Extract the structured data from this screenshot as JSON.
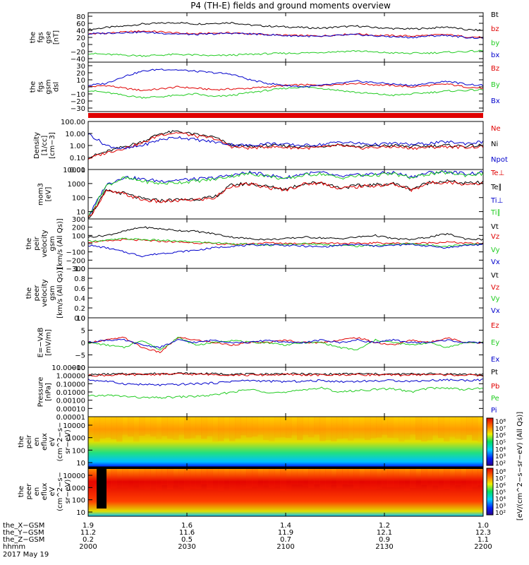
{
  "title": "P4 (TH-E) fields and ground moments overview",
  "colors": {
    "black": "#000000",
    "red": "#e00000",
    "green": "#22cc22",
    "blue": "#0000cc"
  },
  "chart_data": [
    {
      "type": "line",
      "ylabel": [
        "the",
        "fgs",
        "gse",
        "[nT]"
      ],
      "ylim": [
        -50,
        90
      ],
      "ticks": [
        "80",
        "60",
        "40",
        "20",
        "0",
        "−20",
        "−40"
      ],
      "tick_values": [
        80,
        60,
        40,
        20,
        0,
        -20,
        -40
      ],
      "legend": [
        {
          "name": "Bt",
          "color": "#000000"
        },
        {
          "name": "bz",
          "color": "#e00000"
        },
        {
          "name": "by",
          "color": "#22cc22"
        },
        {
          "name": "bx",
          "color": "#0000cc"
        }
      ],
      "series": [
        {
          "name": "Bt",
          "color": "#000000",
          "values": [
            42,
            48,
            52,
            58,
            60,
            62,
            58,
            60,
            62,
            55,
            52,
            50,
            48,
            46,
            50,
            52,
            48,
            45,
            44,
            46,
            50,
            42,
            40
          ]
        },
        {
          "name": "bz",
          "color": "#e00000",
          "values": [
            30,
            32,
            35,
            38,
            36,
            32,
            30,
            32,
            33,
            30,
            28,
            26,
            25,
            24,
            28,
            30,
            26,
            25,
            24,
            26,
            28,
            22,
            20
          ]
        },
        {
          "name": "by",
          "color": "#22cc22",
          "values": [
            -25,
            -28,
            -30,
            -32,
            -30,
            -28,
            -30,
            -32,
            -30,
            -28,
            -26,
            -25,
            -24,
            -22,
            -20,
            -18,
            -22,
            -24,
            -25,
            -24,
            -22,
            -20,
            -18
          ]
        },
        {
          "name": "bx",
          "color": "#0000cc",
          "values": [
            30,
            32,
            34,
            35,
            32,
            30,
            28,
            30,
            32,
            30,
            28,
            25,
            24,
            22,
            26,
            28,
            24,
            22,
            20,
            24,
            26,
            20,
            18
          ]
        }
      ]
    },
    {
      "type": "line",
      "ylabel": [
        "the",
        "fgs",
        "gsm",
        "dsl"
      ],
      "ylim": [
        -35,
        35
      ],
      "ticks": [
        "30",
        "20",
        "10",
        "0",
        "−10",
        "−20",
        "−30"
      ],
      "tick_values": [
        30,
        20,
        10,
        0,
        -10,
        -20,
        -30
      ],
      "legend": [
        {
          "name": "Bz",
          "color": "#e00000"
        },
        {
          "name": "By",
          "color": "#22cc22"
        },
        {
          "name": "Bx",
          "color": "#0000cc"
        }
      ],
      "series": [
        {
          "name": "Bz",
          "color": "#e00000",
          "values": [
            0,
            2,
            -2,
            -5,
            -3,
            0,
            -2,
            -4,
            -3,
            -2,
            0,
            2,
            3,
            2,
            4,
            5,
            3,
            2,
            0,
            2,
            4,
            0,
            -2
          ]
        },
        {
          "name": "By",
          "color": "#22cc22",
          "values": [
            -5,
            -8,
            -12,
            -15,
            -14,
            -12,
            -10,
            -14,
            -12,
            -8,
            -5,
            -2,
            0,
            -2,
            -5,
            -8,
            -10,
            -12,
            -10,
            -8,
            -6,
            -5,
            -4
          ]
        },
        {
          "name": "Bx",
          "color": "#0000cc",
          "values": [
            2,
            5,
            15,
            22,
            25,
            24,
            22,
            20,
            18,
            10,
            5,
            2,
            0,
            2,
            5,
            8,
            6,
            4,
            2,
            5,
            8,
            4,
            2
          ]
        }
      ]
    },
    {
      "type": "line",
      "ylabel": [
        "Density",
        "[1/cc]",
        "[cm−3]"
      ],
      "log": true,
      "ylim": [
        0.01,
        100
      ],
      "ticks": [
        "100.00",
        "10.00",
        "1.00",
        "0.10",
        "0.01"
      ],
      "tick_values": [
        100,
        10,
        1,
        0.1,
        0.01
      ],
      "legend": [
        {
          "name": "Ne",
          "color": "#e00000"
        },
        {
          "name": "Ni",
          "color": "#000000"
        },
        {
          "name": "Npot",
          "color": "#0000cc"
        }
      ],
      "series": [
        {
          "name": "Ni",
          "color": "#000000",
          "values": [
            0.1,
            0.3,
            0.8,
            2,
            10,
            15,
            8,
            5,
            1,
            0.8,
            1,
            0.9,
            0.8,
            0.9,
            1.2,
            0.8,
            0.9,
            1,
            0.8,
            0.9,
            1,
            0.9,
            1
          ]
        },
        {
          "name": "Ne",
          "color": "#e00000",
          "values": [
            0.08,
            0.25,
            0.6,
            1.5,
            8,
            12,
            6,
            4,
            0.8,
            0.6,
            0.8,
            0.7,
            0.6,
            0.7,
            1,
            0.6,
            0.7,
            0.8,
            0.6,
            0.7,
            0.8,
            0.7,
            0.8
          ]
        },
        {
          "name": "Npot",
          "color": "#0000cc",
          "values": [
            10,
            1,
            0.5,
            1,
            3,
            5,
            3,
            2,
            1.2,
            1,
            1.5,
            1.2,
            1,
            1.2,
            2,
            1.5,
            1.2,
            1.5,
            1.2,
            1.5,
            2,
            1.5,
            2
          ]
        }
      ]
    },
    {
      "type": "line",
      "ylabel": [
        "mom3",
        "[eV]"
      ],
      "log": true,
      "ylim": [
        3,
        10000
      ],
      "ticks": [
        "10000",
        "1000",
        "100",
        "10"
      ],
      "tick_values": [
        10000,
        1000,
        100,
        10
      ],
      "legend": [
        {
          "name": "Te⊥",
          "color": "#e00000"
        },
        {
          "name": "Te∥",
          "color": "#000000"
        },
        {
          "name": "Ti⊥",
          "color": "#0000cc"
        },
        {
          "name": "Ti∥",
          "color": "#22cc22"
        }
      ],
      "series": [
        {
          "name": "Ti⊥",
          "color": "#0000cc",
          "values": [
            4,
            800,
            3000,
            2000,
            1500,
            1800,
            2000,
            2500,
            4000,
            6000,
            4000,
            2500,
            5000,
            6000,
            3000,
            4000,
            5000,
            6000,
            3000,
            6000,
            7000,
            5000,
            6000
          ]
        },
        {
          "name": "Ti∥",
          "color": "#22cc22",
          "values": [
            4,
            700,
            2500,
            1500,
            1000,
            1200,
            1500,
            2000,
            3500,
            5000,
            3500,
            2000,
            4000,
            5000,
            2500,
            3500,
            4000,
            5000,
            2500,
            5000,
            6000,
            4000,
            5000
          ]
        },
        {
          "name": "Te∥",
          "color": "#000000",
          "values": [
            3,
            300,
            200,
            80,
            60,
            70,
            80,
            100,
            800,
            1000,
            600,
            400,
            1000,
            1200,
            500,
            700,
            800,
            1000,
            400,
            1200,
            1500,
            1000,
            1200
          ]
        },
        {
          "name": "Te⊥",
          "color": "#e00000",
          "values": [
            3,
            280,
            180,
            70,
            50,
            60,
            70,
            90,
            700,
            900,
            500,
            350,
            900,
            1100,
            450,
            600,
            700,
            900,
            350,
            1100,
            1300,
            900,
            1100
          ]
        }
      ]
    },
    {
      "type": "line",
      "ylabel": [
        "the",
        "peir",
        "velocity",
        "gsm",
        "[km/s (All Qs)]"
      ],
      "ylim": [
        -300,
        300
      ],
      "ticks": [
        "300",
        "200",
        "100",
        "0",
        "−100",
        "−200",
        "−300"
      ],
      "tick_values": [
        300,
        200,
        100,
        0,
        -100,
        -200,
        -300
      ],
      "legend": [
        {
          "name": "Vt",
          "color": "#000000"
        },
        {
          "name": "Vz",
          "color": "#e00000"
        },
        {
          "name": "Vy",
          "color": "#22cc22"
        },
        {
          "name": "Vx",
          "color": "#0000cc"
        }
      ],
      "series": [
        {
          "name": "Vt",
          "color": "#000000",
          "values": [
            80,
            100,
            150,
            200,
            180,
            160,
            150,
            120,
            80,
            60,
            50,
            60,
            80,
            70,
            60,
            80,
            100,
            60,
            50,
            80,
            120,
            60,
            50
          ]
        },
        {
          "name": "Vz",
          "color": "#e00000",
          "values": [
            20,
            30,
            50,
            40,
            30,
            20,
            10,
            0,
            -10,
            0,
            10,
            5,
            0,
            10,
            5,
            0,
            10,
            5,
            0,
            10,
            20,
            5,
            0
          ]
        },
        {
          "name": "Vy",
          "color": "#22cc22",
          "values": [
            30,
            40,
            60,
            50,
            40,
            30,
            20,
            10,
            0,
            -10,
            -20,
            -10,
            0,
            -10,
            -20,
            -30,
            -20,
            -10,
            0,
            -20,
            -30,
            -10,
            0
          ]
        },
        {
          "name": "Vx",
          "color": "#0000cc",
          "values": [
            -20,
            -50,
            -100,
            -150,
            -120,
            -100,
            -80,
            -50,
            -30,
            -20,
            -10,
            -20,
            -30,
            -40,
            -20,
            -10,
            -30,
            -20,
            -10,
            -30,
            -50,
            -20,
            -10
          ]
        }
      ]
    },
    {
      "type": "line",
      "ylabel": [
        "the",
        "peer",
        "velocity",
        "gsm",
        "[km/s (All Qs)]"
      ],
      "ylim": [
        0,
        1
      ],
      "ticks": [
        "1.0",
        "0.8",
        "0.6",
        "0.4",
        "0.2",
        "0.0"
      ],
      "tick_values": [
        1,
        0.8,
        0.6,
        0.4,
        0.2,
        0
      ],
      "legend": [
        {
          "name": "Vt",
          "color": "#000000"
        },
        {
          "name": "Vz",
          "color": "#e00000"
        },
        {
          "name": "Vy",
          "color": "#22cc22"
        },
        {
          "name": "Vx",
          "color": "#0000cc"
        }
      ],
      "series": []
    },
    {
      "type": "line",
      "ylabel": [
        "E=−VxB",
        "[mV/m]"
      ],
      "ylim": [
        -10,
        10
      ],
      "ticks": [
        "10",
        "5",
        "0",
        "−5",
        "−10"
      ],
      "tick_values": [
        10,
        5,
        0,
        -5,
        -10
      ],
      "legend": [
        {
          "name": "Ez",
          "color": "#e00000"
        },
        {
          "name": "Ey",
          "color": "#22cc22"
        },
        {
          "name": "Ex",
          "color": "#0000cc"
        }
      ],
      "series": [
        {
          "name": "Ez",
          "color": "#e00000",
          "values": [
            0,
            1,
            2,
            -2,
            -4,
            2,
            1,
            0,
            -1,
            0,
            0,
            1,
            0,
            0,
            1,
            2,
            0,
            -1,
            1,
            0,
            2,
            0,
            0
          ]
        },
        {
          "name": "Ey",
          "color": "#22cc22",
          "values": [
            0,
            -1,
            -2,
            1,
            -3,
            2,
            -1,
            0,
            1,
            0,
            0,
            -1,
            0,
            0,
            -2,
            -3,
            1,
            0,
            -1,
            0,
            -2,
            0,
            0
          ]
        },
        {
          "name": "Ex",
          "color": "#0000cc",
          "values": [
            0,
            1,
            1,
            -1,
            -2,
            1,
            0,
            1,
            0,
            0,
            1,
            0,
            0,
            1,
            0,
            1,
            0,
            1,
            0,
            0,
            1,
            0,
            0
          ]
        }
      ]
    },
    {
      "type": "line",
      "ylabel": [
        "Pressure",
        "[nPa]"
      ],
      "log": true,
      "ylim": [
        1e-05,
        10
      ],
      "ticks": [
        "10.00000",
        "1.00000",
        "0.10000",
        "0.01000",
        "0.00100",
        "0.00010",
        "0.00001"
      ],
      "tick_values": [
        10,
        1,
        0.1,
        0.01,
        0.001,
        0.0001,
        1e-05
      ],
      "legend": [
        {
          "name": "Pt",
          "color": "#000000"
        },
        {
          "name": "Pb",
          "color": "#e00000"
        },
        {
          "name": "Pe",
          "color": "#22cc22"
        },
        {
          "name": "Pi",
          "color": "#0000cc"
        }
      ],
      "series": [
        {
          "name": "Pt",
          "color": "#000000",
          "values": [
            1.2,
            1.4,
            1.5,
            1.6,
            1.7,
            1.8,
            1.7,
            1.6,
            1.5,
            1.4,
            1.5,
            1.6,
            1.5,
            1.4,
            1.5,
            1.6,
            1.5,
            1.4,
            1.5,
            1.6,
            1.5,
            1.4,
            1.3
          ]
        },
        {
          "name": "Pb",
          "color": "#e00000",
          "values": [
            1,
            1.1,
            1.2,
            1.3,
            1.4,
            1.5,
            1.4,
            1.3,
            1.2,
            1.1,
            1.2,
            1.3,
            1.2,
            1.1,
            1.2,
            1.3,
            1.2,
            1.1,
            1.2,
            1.3,
            1.2,
            1.1,
            1
          ]
        },
        {
          "name": "Pi",
          "color": "#0000cc",
          "values": [
            0.3,
            0.2,
            0.1,
            0.08,
            0.07,
            0.08,
            0.1,
            0.12,
            0.2,
            0.25,
            0.2,
            0.18,
            0.2,
            0.25,
            0.18,
            0.2,
            0.22,
            0.25,
            0.2,
            0.25,
            0.3,
            0.25,
            0.3
          ]
        },
        {
          "name": "Pe",
          "color": "#22cc22",
          "values": [
            0.003,
            0.004,
            0.003,
            0.002,
            0.002,
            0.0025,
            0.003,
            0.004,
            0.01,
            0.02,
            0.01,
            0.008,
            0.02,
            0.03,
            0.01,
            0.015,
            0.02,
            0.025,
            0.01,
            0.03,
            0.03,
            0.02,
            0.03
          ]
        }
      ]
    },
    {
      "type": "heatmap",
      "ylabel": [
        "the",
        "peir",
        "en",
        "eflux",
        "eV",
        "(cm^2−s−",
        "sr−eV)"
      ],
      "ticks": [
        "10000",
        "1000",
        "100",
        "10"
      ],
      "colorbar": {
        "label": "[eV/(cm^2−s−sr−eV) (All Qs)]",
        "ticks": [
          "10⁸",
          "10⁷",
          "10⁶",
          "10⁵",
          "10⁴",
          "10³",
          "10²"
        ]
      }
    },
    {
      "type": "heatmap",
      "ylabel": [
        "the",
        "peer",
        "en",
        "eflux",
        "eV",
        "(cm^2−s−",
        "sr−eV)"
      ],
      "ticks": [
        "10000",
        "1000",
        "100",
        "10"
      ],
      "colorbar": {
        "label": "[eV/(cm^2−s−sr−eV) (All Qs)]",
        "ticks": [
          "10⁸",
          "10⁷",
          "10⁶",
          "10⁵",
          "10⁴",
          "10³",
          "10²"
        ]
      }
    }
  ],
  "xaxis": {
    "row_labels": [
      "the_X−GSM",
      "the_Y−GSM",
      "the_Z−GSM",
      "hhmm",
      "2017 May 19"
    ],
    "columns": [
      {
        "x": "1.9",
        "y": "11.2",
        "z": "0.2",
        "t": "2000"
      },
      {
        "x": "1.6",
        "y": "11.6",
        "z": "0.5",
        "t": "2030"
      },
      {
        "x": "1.4",
        "y": "11.9",
        "z": "0.7",
        "t": "2100"
      },
      {
        "x": "1.2",
        "y": "12.1",
        "z": "0.9",
        "t": "2130"
      },
      {
        "x": "1.0",
        "y": "12.3",
        "z": "1.1",
        "t": "2200"
      }
    ]
  }
}
